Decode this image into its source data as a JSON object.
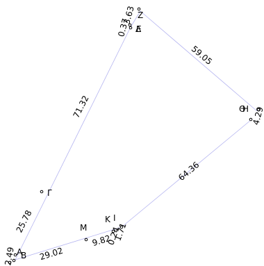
{
  "colors": {
    "edge": "#b4b4f0",
    "point_fill": "#ffffff",
    "point_stroke": "#000000",
    "text": "#000000"
  },
  "points": {
    "Z": "Z",
    "Delta": "Δ",
    "E": "E",
    "H": "H",
    "Theta": "Θ",
    "Gamma": "Γ",
    "A": "A",
    "B": "B",
    "M": "M",
    "K": "K",
    "I": "I"
  },
  "edge_lengths": {
    "Z_H": "59.05",
    "Z_Gamma": "71.32",
    "Gamma_A": "25.78",
    "A_B": "2.49",
    "B_M": "29.02",
    "M_I": "9.82",
    "I_H": "64.36",
    "H_Theta": "4.29",
    "Z_E": "0.37",
    "Z_E_b": "3.63",
    "K_I_a": "0.24",
    "K_I_b": "1.71"
  }
}
